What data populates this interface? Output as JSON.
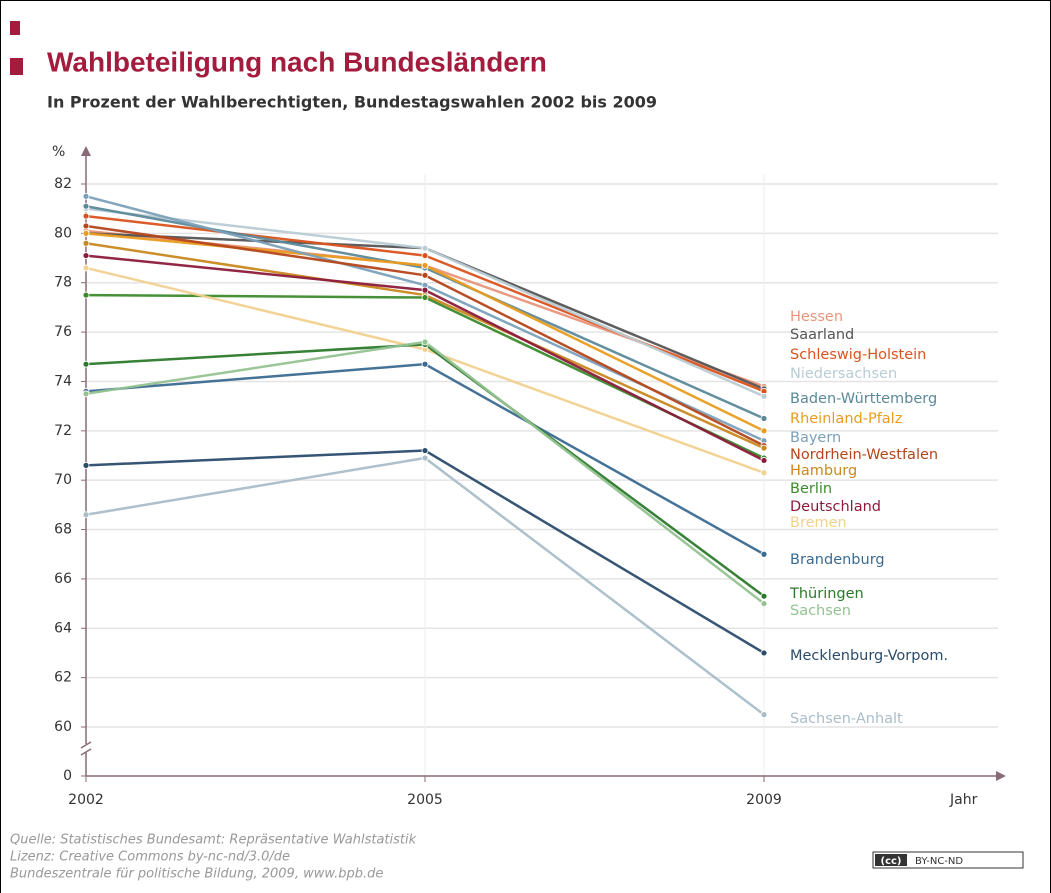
{
  "chart_data": {
    "type": "line",
    "title": "Wahlbeteiligung nach Bundesländern",
    "subtitle": "In Prozent der Wahlberechtigten, Bundestagswahlen 2002 bis 2009",
    "y_axis_label": "%",
    "x_axis_label": "Jahr",
    "categories": [
      "2002",
      "2005",
      "2009"
    ],
    "ylim": [
      60,
      82
    ],
    "yticks": [
      0,
      60,
      62,
      64,
      66,
      68,
      70,
      72,
      74,
      76,
      78,
      80,
      82
    ],
    "axis_break": true,
    "grid": true,
    "series": [
      {
        "name": "Hessen",
        "color": "#e8957a",
        "values": [
          80.1,
          78.7,
          73.8
        ]
      },
      {
        "name": "Saarland",
        "color": "#555555",
        "values": [
          80.0,
          79.4,
          73.7
        ]
      },
      {
        "name": "Schleswig-Holstein",
        "color": "#d9531e",
        "values": [
          80.7,
          79.1,
          73.6
        ]
      },
      {
        "name": "Niedersachsen",
        "color": "#b9ccd4",
        "values": [
          81.0,
          79.4,
          73.4
        ]
      },
      {
        "name": "Baden-Württemberg",
        "color": "#5b8999",
        "values": [
          81.1,
          78.6,
          72.5
        ]
      },
      {
        "name": "Rheinland-Pfalz",
        "color": "#e99c1e",
        "values": [
          80.0,
          78.7,
          72.0
        ]
      },
      {
        "name": "Bayern",
        "color": "#7ba1b9",
        "values": [
          81.5,
          77.9,
          71.6
        ]
      },
      {
        "name": "Nordrhein-Westfalen",
        "color": "#b5461b",
        "values": [
          80.3,
          78.3,
          71.4
        ]
      },
      {
        "name": "Hamburg",
        "color": "#c8881f",
        "values": [
          79.6,
          77.5,
          71.3
        ]
      },
      {
        "name": "Berlin",
        "color": "#3c8a2c",
        "values": [
          77.5,
          77.4,
          70.9
        ]
      },
      {
        "name": "Deutschland",
        "color": "#8c1b3b",
        "values": [
          79.1,
          77.7,
          70.8
        ]
      },
      {
        "name": "Bremen",
        "color": "#f1d18f",
        "values": [
          78.6,
          75.3,
          70.3
        ]
      },
      {
        "name": "Brandenburg",
        "color": "#3b6a91",
        "values": [
          73.6,
          74.7,
          67.0
        ]
      },
      {
        "name": "Thüringen",
        "color": "#2b7a2b",
        "values": [
          74.7,
          75.5,
          65.3
        ]
      },
      {
        "name": "Sachsen",
        "color": "#93c291",
        "values": [
          73.5,
          75.6,
          65.0
        ]
      },
      {
        "name": "Mecklenburg-Vorpom.",
        "color": "#2b4b6b",
        "values": [
          70.6,
          71.2,
          63.0
        ]
      },
      {
        "name": "Sachsen-Anhalt",
        "color": "#a9bdc9",
        "values": [
          68.6,
          70.9,
          60.5
        ]
      }
    ],
    "source": [
      "Quelle: Statistisches Bundesamt: Repräsentative Wahlstatistik",
      "Lizenz: Creative Commons by-nc-nd/3.0/de",
      "Bundeszentrale für politische Bildung, 2009, www.bpb.de"
    ],
    "license_icon": "(cc)",
    "license_badge": "BY-NC-ND"
  }
}
